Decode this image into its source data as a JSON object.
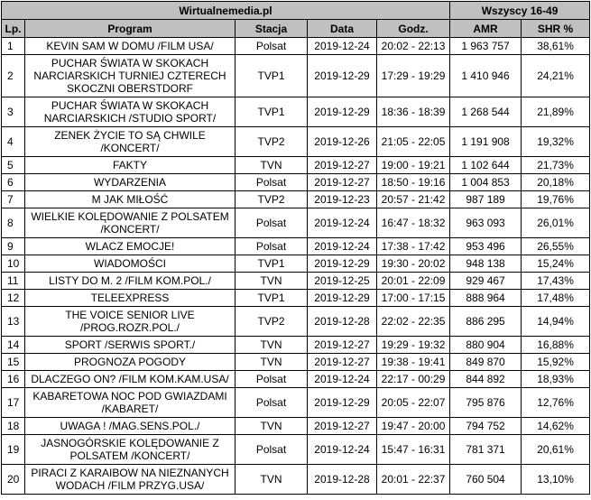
{
  "header": {
    "source": "Wirtualnemedia.pl",
    "group": "Wszyscy 16-49",
    "columns": [
      "Lp.",
      "Program",
      "Stacja",
      "Data",
      "Godz.",
      "AMR",
      "SHR %"
    ]
  },
  "colors": {
    "header_bg": "#c0c0c0",
    "border": "#000000"
  },
  "rows": [
    {
      "lp": "1",
      "program": "KEVIN SAM W DOMU /FILM USA/",
      "station": "Polsat",
      "date": "2019-12-24",
      "time": "20:02 - 22:13",
      "amr": "1 963 757",
      "shr": "38,61%"
    },
    {
      "lp": "2",
      "program": "PUCHAR ŚWIATA W SKOKACH\nNARCIARSKICH TURNIEJ CZTERECH\nSKOCZNI OBERSTDORF",
      "station": "TVP1",
      "date": "2019-12-29",
      "time": "17:29 - 19:29",
      "amr": "1 410 946",
      "shr": "24,21%"
    },
    {
      "lp": "3",
      "program": "PUCHAR ŚWIATA W SKOKACH\nNARCIARSKICH /STUDIO SPORT/",
      "station": "TVP1",
      "date": "2019-12-29",
      "time": "18:36 - 18:39",
      "amr": "1 268 544",
      "shr": "21,89%"
    },
    {
      "lp": "4",
      "program": "ZENEK ŻYCIE TO SĄ CHWILE\n/KONCERT/",
      "station": "TVP2",
      "date": "2019-12-26",
      "time": "21:05 - 22:05",
      "amr": "1 191 908",
      "shr": "19,32%"
    },
    {
      "lp": "5",
      "program": "FAKTY",
      "station": "TVN",
      "date": "2019-12-27",
      "time": "19:00 - 19:21",
      "amr": "1 102 644",
      "shr": "21,73%"
    },
    {
      "lp": "6",
      "program": "WYDARZENIA",
      "station": "Polsat",
      "date": "2019-12-27",
      "time": "18:50 - 19:16",
      "amr": "1 004 853",
      "shr": "20,18%"
    },
    {
      "lp": "7",
      "program": "M JAK MIŁOŚĆ",
      "station": "TVP2",
      "date": "2019-12-23",
      "time": "20:57 - 21:42",
      "amr": "987 189",
      "shr": "19,76%"
    },
    {
      "lp": "8",
      "program": "WIELKIE KOLĘDOWANIE Z POLSATEM\n/KONCERT/",
      "station": "Polsat",
      "date": "2019-12-24",
      "time": "16:47 - 18:32",
      "amr": "963 093",
      "shr": "26,01%"
    },
    {
      "lp": "9",
      "program": "WLACZ EMOCJE!",
      "station": "Polsat",
      "date": "2019-12-24",
      "time": "17:38 - 17:42",
      "amr": "953 496",
      "shr": "26,55%"
    },
    {
      "lp": "10",
      "program": "WIADOMOŚCI",
      "station": "TVP1",
      "date": "2019-12-29",
      "time": "19:30 - 20:02",
      "amr": "948 138",
      "shr": "15,24%"
    },
    {
      "lp": "11",
      "program": "LISTY DO M. 2 /FILM KOM.POL./",
      "station": "TVN",
      "date": "2019-12-25",
      "time": "20:01 - 22:09",
      "amr": "929 467",
      "shr": "17,43%"
    },
    {
      "lp": "12",
      "program": "TELEEXPRESS",
      "station": "TVP1",
      "date": "2019-12-29",
      "time": "17:00 - 17:15",
      "amr": "888 964",
      "shr": "17,48%"
    },
    {
      "lp": "13",
      "program": "THE VOICE SENIOR LIVE\n/PROG.ROZR.POL./",
      "station": "TVP2",
      "date": "2019-12-28",
      "time": "22:02 - 22:35",
      "amr": "886 295",
      "shr": "14,94%"
    },
    {
      "lp": "14",
      "program": "SPORT /SERWIS SPORT./",
      "station": "TVN",
      "date": "2019-12-27",
      "time": "19:29 - 19:32",
      "amr": "880 904",
      "shr": "16,88%"
    },
    {
      "lp": "15",
      "program": "PROGNOZA POGODY",
      "station": "TVN",
      "date": "2019-12-27",
      "time": "19:38 - 19:41",
      "amr": "849 870",
      "shr": "15,92%"
    },
    {
      "lp": "16",
      "program": "DLACZEGO ON? /FILM KOM.KAM.USA/",
      "station": "Polsat",
      "date": "2019-12-24",
      "time": "22:17 - 00:29",
      "amr": "844 892",
      "shr": "18,93%"
    },
    {
      "lp": "17",
      "program": "KABARETOWA NOC POD GWIAZDAMI\n/KABARET/",
      "station": "Polsat",
      "date": "2019-12-29",
      "time": "20:05 - 22:07",
      "amr": "795 876",
      "shr": "12,76%"
    },
    {
      "lp": "18",
      "program": "UWAGA ! /MAG.SENS.POL./",
      "station": "TVN",
      "date": "2019-12-27",
      "time": "19:47 - 20:00",
      "amr": "794 752",
      "shr": "14,62%"
    },
    {
      "lp": "19",
      "program": "JASNOGÓRSKIE KOLĘDOWANIE Z\nPOLSATEM /KONCERT/",
      "station": "Polsat",
      "date": "2019-12-24",
      "time": "15:47 - 16:31",
      "amr": "781 371",
      "shr": "20,61%"
    },
    {
      "lp": "20",
      "program": "PIRACI Z KARAIBOW NA NIEZNANYCH\nWODACH /FILM PRZYG.USA/",
      "station": "TVN",
      "date": "2019-12-28",
      "time": "20:01 - 22:37",
      "amr": "760 504",
      "shr": "13,10%"
    }
  ]
}
